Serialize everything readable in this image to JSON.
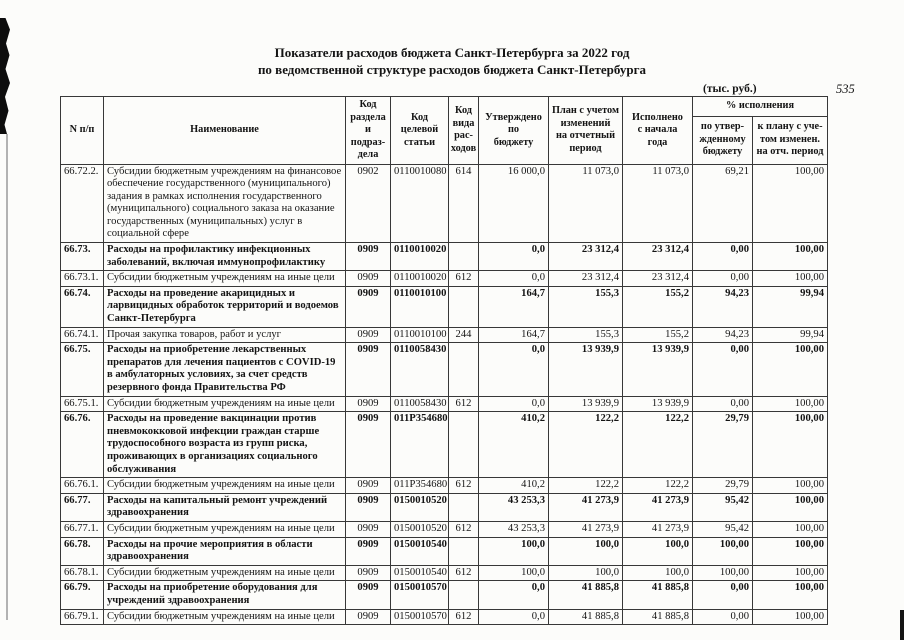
{
  "page": {
    "title": "Показатели расходов бюджета Санкт-Петербурга за 2022 год\nпо ведомственной структуре расходов бюджета Санкт-Петербурга",
    "units_note": "(тыс. руб.)",
    "page_number": "535"
  },
  "table": {
    "headers": {
      "num": "N п/п",
      "name": "Наименование",
      "section_code": "Код\nраздела и\nподраз-\nдела",
      "target_article": "Код\nцелевой\nстатьи",
      "expense_kind": "Код\nвида\nрас-\nходов",
      "approved": "Утверждено\nпо\nбюджету",
      "plan": "План с учетом\nизменений\nна отчетный\nпериод",
      "executed": "Исполнено\nс начала\nгода",
      "pct_group": "% исполнения",
      "pct_approved": "по утвер-\nжденному\nбюджету",
      "pct_plan": "к плану с уче-\nтом изменен.\nна отч. период"
    },
    "rows": [
      {
        "num": "66.72.2.",
        "name": "Субсидии бюджетным учреждениям на финансовое обеспечение государственного (муниципального) задания в рамках исполнения государственного (муниципального) социального заказа на оказание государственных (муниципальных) услуг в социальной сфере",
        "section": "0902",
        "target": "0110010080",
        "kind": "614",
        "approved": "16 000,0",
        "plan": "11 073,0",
        "executed": "11 073,0",
        "pct_budget": "69,21",
        "pct_plan": "100,00",
        "bold": false
      },
      {
        "num": "66.73.",
        "name": "Расходы на профилактику инфекционных заболеваний, включая иммунопрофилактику",
        "section": "0909",
        "target": "0110010020",
        "kind": "",
        "approved": "0,0",
        "plan": "23 312,4",
        "executed": "23 312,4",
        "pct_budget": "0,00",
        "pct_plan": "100,00",
        "bold": true
      },
      {
        "num": "66.73.1.",
        "name": "Субсидии бюджетным учреждениям на иные цели",
        "section": "0909",
        "target": "0110010020",
        "kind": "612",
        "approved": "0,0",
        "plan": "23 312,4",
        "executed": "23 312,4",
        "pct_budget": "0,00",
        "pct_plan": "100,00",
        "bold": false
      },
      {
        "num": "66.74.",
        "name": "Расходы на проведение акарицидных и ларвицидных обработок территорий и водоемов Санкт-Петербурга",
        "section": "0909",
        "target": "0110010100",
        "kind": "",
        "approved": "164,7",
        "plan": "155,3",
        "executed": "155,2",
        "pct_budget": "94,23",
        "pct_plan": "99,94",
        "bold": true
      },
      {
        "num": "66.74.1.",
        "name": "Прочая закупка товаров, работ и услуг",
        "section": "0909",
        "target": "0110010100",
        "kind": "244",
        "approved": "164,7",
        "plan": "155,3",
        "executed": "155,2",
        "pct_budget": "94,23",
        "pct_plan": "99,94",
        "bold": false
      },
      {
        "num": "66.75.",
        "name": "Расходы на приобретение лекарственных препаратов для лечения пациентов с COVID-19 в амбулаторных условиях, за счет средств резервного фонда Правительства РФ",
        "section": "0909",
        "target": "0110058430",
        "kind": "",
        "approved": "0,0",
        "plan": "13 939,9",
        "executed": "13 939,9",
        "pct_budget": "0,00",
        "pct_plan": "100,00",
        "bold": true
      },
      {
        "num": "66.75.1.",
        "name": "Субсидии бюджетным учреждениям на иные цели",
        "section": "0909",
        "target": "0110058430",
        "kind": "612",
        "approved": "0,0",
        "plan": "13 939,9",
        "executed": "13 939,9",
        "pct_budget": "0,00",
        "pct_plan": "100,00",
        "bold": false
      },
      {
        "num": "66.76.",
        "name": "Расходы на проведение вакцинации против пневмококковой инфекции граждан старше трудоспособного возраста из групп риска, проживающих в организациях социального обслуживания",
        "section": "0909",
        "target": "011P354680",
        "kind": "",
        "approved": "410,2",
        "plan": "122,2",
        "executed": "122,2",
        "pct_budget": "29,79",
        "pct_plan": "100,00",
        "bold": true
      },
      {
        "num": "66.76.1.",
        "name": "Субсидии бюджетным учреждениям на иные цели",
        "section": "0909",
        "target": "011P354680",
        "kind": "612",
        "approved": "410,2",
        "plan": "122,2",
        "executed": "122,2",
        "pct_budget": "29,79",
        "pct_plan": "100,00",
        "bold": false
      },
      {
        "num": "66.77.",
        "name": "Расходы на капитальный ремонт учреждений здравоохранения",
        "section": "0909",
        "target": "0150010520",
        "kind": "",
        "approved": "43 253,3",
        "plan": "41 273,9",
        "executed": "41 273,9",
        "pct_budget": "95,42",
        "pct_plan": "100,00",
        "bold": true
      },
      {
        "num": "66.77.1.",
        "name": "Субсидии бюджетным учреждениям на иные цели",
        "section": "0909",
        "target": "0150010520",
        "kind": "612",
        "approved": "43 253,3",
        "plan": "41 273,9",
        "executed": "41 273,9",
        "pct_budget": "95,42",
        "pct_plan": "100,00",
        "bold": false
      },
      {
        "num": "66.78.",
        "name": "Расходы на прочие мероприятия в области здравоохранения",
        "section": "0909",
        "target": "0150010540",
        "kind": "",
        "approved": "100,0",
        "plan": "100,0",
        "executed": "100,0",
        "pct_budget": "100,00",
        "pct_plan": "100,00",
        "bold": true
      },
      {
        "num": "66.78.1.",
        "name": "Субсидии бюджетным учреждениям на иные цели",
        "section": "0909",
        "target": "0150010540",
        "kind": "612",
        "approved": "100,0",
        "plan": "100,0",
        "executed": "100,0",
        "pct_budget": "100,00",
        "pct_plan": "100,00",
        "bold": false
      },
      {
        "num": "66.79.",
        "name": "Расходы на приобретение оборудования для учреждений здравоохранения",
        "section": "0909",
        "target": "0150010570",
        "kind": "",
        "approved": "0,0",
        "plan": "41 885,8",
        "executed": "41 885,8",
        "pct_budget": "0,00",
        "pct_plan": "100,00",
        "bold": true
      },
      {
        "num": "66.79.1.",
        "name": "Субсидии бюджетным учреждениям на иные цели",
        "section": "0909",
        "target": "0150010570",
        "kind": "612",
        "approved": "0,0",
        "plan": "41 885,8",
        "executed": "41 885,8",
        "pct_budget": "0,00",
        "pct_plan": "100,00",
        "bold": false
      }
    ]
  }
}
